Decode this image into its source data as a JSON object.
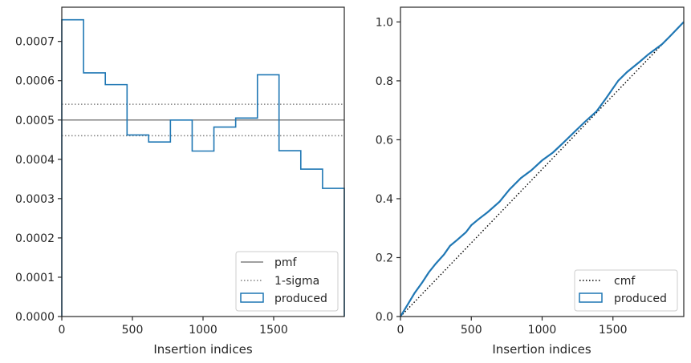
{
  "chart_data": [
    {
      "type": "histogram",
      "xlabel": "Insertion indices",
      "ylabel": "",
      "xlim": [
        0,
        2000
      ],
      "ylim": [
        0,
        0.000787
      ],
      "xticks": [
        0,
        500,
        1000,
        1500
      ],
      "xtick_labels": [
        "0",
        "500",
        "1000",
        "1500"
      ],
      "yticks": [
        0,
        0.0001,
        0.0002,
        0.0003,
        0.0004,
        0.0005,
        0.0006,
        0.0007
      ],
      "ytick_labels": [
        "0.0000",
        "0.0001",
        "0.0002",
        "0.0003",
        "0.0004",
        "0.0005",
        "0.0006",
        "0.0007"
      ],
      "bin_edges": [
        0,
        154,
        308,
        462,
        615,
        769,
        923,
        1077,
        1231,
        1385,
        1538,
        1692,
        1846,
        2000
      ],
      "values": [
        0.000755,
        0.00062,
        0.00059,
        0.000462,
        0.000444,
        0.0005,
        0.000421,
        0.000482,
        0.000505,
        0.000615,
        0.000422,
        0.000375,
        0.000326
      ],
      "hlines": [
        {
          "name": "pmf",
          "y": 0.0005,
          "style": "solid",
          "color": "#808080"
        },
        {
          "name": "1-sigma",
          "y": 0.00054,
          "style": "dotted",
          "color": "#808080"
        },
        {
          "name": "1-sigma",
          "y": 0.00046,
          "style": "dotted",
          "color": "#808080"
        }
      ],
      "series": [
        {
          "name": "produced",
          "color": "#1f77b4"
        }
      ],
      "legend": {
        "placement": "lower right",
        "entries": [
          "pmf",
          "1-sigma",
          "produced"
        ]
      },
      "grid": false
    },
    {
      "type": "line",
      "xlabel": "Insertion indices",
      "ylabel": "",
      "xlim": [
        0,
        2000
      ],
      "ylim": [
        0,
        1.05
      ],
      "xticks": [
        0,
        500,
        1000,
        1500
      ],
      "xtick_labels": [
        "0",
        "500",
        "1000",
        "1500"
      ],
      "yticks": [
        0,
        0.2,
        0.4,
        0.6,
        0.8,
        1.0
      ],
      "ytick_labels": [
        "0.0",
        "0.2",
        "0.4",
        "0.6",
        "0.8",
        "1.0"
      ],
      "series": [
        {
          "name": "cmf",
          "style": "dotted",
          "color": "#000000",
          "x": [
            0,
            2000
          ],
          "y": [
            0,
            1.0
          ]
        },
        {
          "name": "produced",
          "style": "step",
          "color": "#1f77b4",
          "x": [
            0,
            50,
            100,
            154,
            200,
            250,
            308,
            350,
            400,
            462,
            500,
            550,
            615,
            700,
            769,
            850,
            923,
            1000,
            1077,
            1150,
            1231,
            1300,
            1385,
            1450,
            1538,
            1600,
            1692,
            1750,
            1846,
            1900,
            2000
          ],
          "y": [
            0,
            0.04,
            0.08,
            0.116,
            0.15,
            0.18,
            0.211,
            0.24,
            0.26,
            0.286,
            0.31,
            0.33,
            0.354,
            0.39,
            0.431,
            0.47,
            0.496,
            0.53,
            0.557,
            0.59,
            0.628,
            0.66,
            0.697,
            0.74,
            0.801,
            0.83,
            0.866,
            0.89,
            0.924,
            0.95,
            1.0
          ]
        }
      ],
      "legend": {
        "placement": "lower right",
        "entries": [
          "cmf",
          "produced"
        ]
      },
      "grid": false
    }
  ]
}
